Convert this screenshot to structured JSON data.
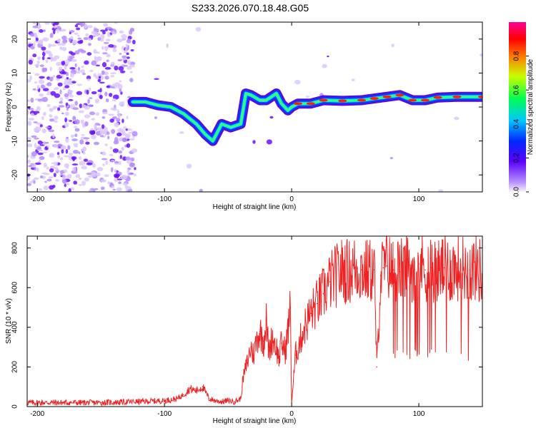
{
  "title": "S233.2026.070.18.48.G05",
  "colors": {
    "snr_line": "#ee2222",
    "axis": "#000000",
    "background": "#ffffff"
  },
  "chart_data": [
    {
      "type": "heatmap",
      "name": "spectrogram",
      "xlabel": "Height of straight line (km)",
      "ylabel": "Frequency (Hz)",
      "xlim": [
        -208,
        150
      ],
      "ylim": [
        -25,
        25
      ],
      "xticks": [
        -200,
        -100,
        0,
        100
      ],
      "xtick_labels": [
        "-200",
        "-100",
        "0",
        "100"
      ],
      "yticks": [
        -20,
        -10,
        0,
        10,
        20
      ],
      "ytick_labels": [
        "-20",
        "-10",
        "0",
        "10",
        "20"
      ],
      "colorbar": {
        "label": "Normalized spectral amplitude",
        "range": [
          0,
          1
        ],
        "ticks": [
          0.0,
          0.2,
          0.4,
          0.6,
          0.8
        ],
        "tick_labels": [
          "0.0",
          "0.2",
          "0.4",
          "0.6",
          "0.8"
        ],
        "colormap": "rainbow (violet-blue-cyan-green-yellow-red-magenta)"
      },
      "dominant_frequency_track": {
        "x": [
          -125,
          -115,
          -105,
          -95,
          -85,
          -75,
          -68,
          -62,
          -55,
          -48,
          -40,
          -36,
          -32,
          -25,
          -20,
          -12,
          -8,
          -3,
          0,
          5,
          15,
          25,
          40,
          55,
          65,
          75,
          85,
          95,
          105,
          115,
          130,
          150
        ],
        "y": [
          1.5,
          1.5,
          0.5,
          0,
          -2,
          -5,
          -8,
          -10,
          -5,
          -6,
          -5,
          4,
          3.5,
          2,
          2,
          4,
          1,
          -1,
          0,
          1,
          1,
          2,
          1.8,
          2,
          2.5,
          3,
          3.5,
          2,
          2,
          2.8,
          3,
          3
        ]
      }
    },
    {
      "type": "line",
      "name": "snr",
      "xlabel": "Height of straight line (km)",
      "ylabel": "SNR (10 * v/v)",
      "xlim": [
        -208,
        150
      ],
      "ylim": [
        0,
        860
      ],
      "xticks": [
        -200,
        -100,
        0,
        100
      ],
      "xtick_labels": [
        "-200",
        "-100",
        "0",
        "100"
      ],
      "yticks": [
        0,
        200,
        400,
        600,
        800
      ],
      "ytick_labels": [
        "0",
        "200",
        "400",
        "600",
        "800"
      ],
      "series": [
        {
          "name": "SNR",
          "x": [
            -208,
            -180,
            -150,
            -120,
            -100,
            -90,
            -85,
            -80,
            -75,
            -70,
            -65,
            -60,
            -55,
            -50,
            -45,
            -40,
            -38,
            -35,
            -32,
            -30,
            -27,
            -25,
            -22,
            -20,
            -18,
            -15,
            -12,
            -10,
            -8,
            -5,
            -3,
            -1,
            0,
            3,
            6,
            10,
            15,
            20,
            25,
            30,
            35,
            40,
            45,
            50,
            55,
            60,
            65,
            67,
            70,
            72,
            75,
            80,
            85,
            90,
            95,
            100,
            105,
            110,
            115,
            120,
            125,
            130,
            135,
            140,
            145,
            150
          ],
          "values": [
            20,
            20,
            20,
            25,
            30,
            40,
            60,
            90,
            80,
            100,
            40,
            30,
            25,
            30,
            25,
            40,
            150,
            220,
            300,
            260,
            350,
            380,
            330,
            430,
            280,
            350,
            300,
            240,
            320,
            280,
            380,
            500,
            20,
            260,
            320,
            400,
            470,
            520,
            570,
            630,
            660,
            690,
            680,
            700,
            690,
            680,
            690,
            200,
            660,
            700,
            710,
            690,
            680,
            700,
            700,
            720,
            690,
            700,
            680,
            700,
            690,
            700,
            700,
            690,
            700,
            680
          ]
        }
      ]
    }
  ]
}
